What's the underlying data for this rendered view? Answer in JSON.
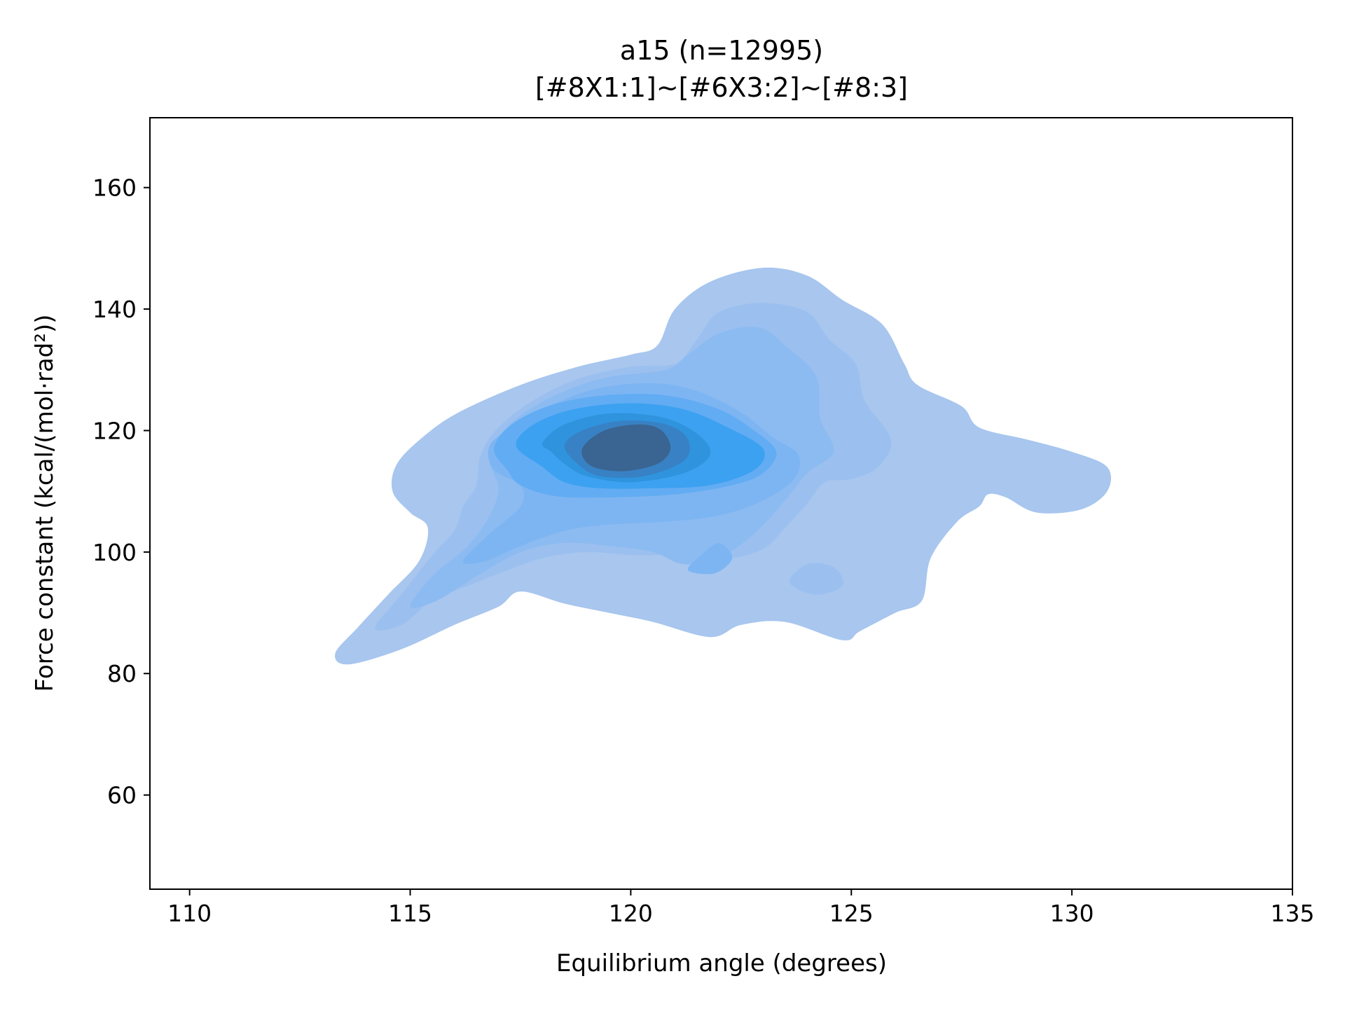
{
  "chart_data": {
    "type": "kde-contour",
    "title": "a15 (n=12995)",
    "subtitle": "[#8X1:1]~[#6X3:2]~[#8:3]",
    "xlabel": "Equilibrium angle (degrees)",
    "ylabel": "Force constant (kcal/(mol·rad²))",
    "xlim": [
      109.1,
      135.0
    ],
    "ylim": [
      44.5,
      171.5
    ],
    "xticks": [
      "110",
      "115",
      "120",
      "125",
      "130",
      "135"
    ],
    "yticks": [
      "60",
      "80",
      "100",
      "120",
      "140",
      "160"
    ],
    "grid": false,
    "legend": "none",
    "n_samples": 12995,
    "mode": {
      "x": 119.9,
      "y": 117.0
    },
    "colors": {
      "levels": [
        "#a8c6ee",
        "#9bc0ef",
        "#8cbbf1",
        "#7db5f2",
        "#62acf3",
        "#3ca1f0",
        "#2f93dd",
        "#3881c4",
        "#3a6491"
      ]
    },
    "levels": [
      {
        "level": 1,
        "polygons": [
          [
            [
              113.3,
              83.3
            ],
            [
              113.8,
              87.5
            ],
            [
              114.5,
              93.0
            ],
            [
              115.2,
              98.5
            ],
            [
              115.4,
              104.0
            ],
            [
              115.0,
              106.5
            ],
            [
              114.6,
              110.0
            ],
            [
              114.7,
              114.5
            ],
            [
              115.3,
              119.0
            ],
            [
              116.1,
              123.0
            ],
            [
              117.5,
              127.5
            ],
            [
              118.8,
              130.5
            ],
            [
              120.0,
              132.5
            ],
            [
              120.6,
              134.0
            ],
            [
              121.0,
              140.0
            ],
            [
              121.8,
              144.5
            ],
            [
              123.0,
              146.8
            ],
            [
              124.0,
              145.5
            ],
            [
              124.8,
              141.5
            ],
            [
              125.7,
              137.5
            ],
            [
              126.2,
              131.0
            ],
            [
              126.5,
              127.5
            ],
            [
              127.5,
              124.0
            ],
            [
              127.9,
              120.5
            ],
            [
              129.0,
              118.5
            ],
            [
              130.0,
              116.5
            ],
            [
              130.8,
              114.0
            ],
            [
              130.8,
              110.0
            ],
            [
              130.2,
              107.0
            ],
            [
              129.2,
              106.5
            ],
            [
              128.5,
              109.0
            ],
            [
              128.1,
              109.5
            ],
            [
              127.9,
              107.5
            ],
            [
              127.4,
              105.0
            ],
            [
              126.8,
              99.0
            ],
            [
              126.6,
              92.0
            ],
            [
              126.0,
              90.0
            ],
            [
              125.2,
              87.0
            ],
            [
              124.8,
              85.5
            ],
            [
              123.5,
              88.5
            ],
            [
              122.5,
              88.0
            ],
            [
              121.8,
              86.0
            ],
            [
              120.5,
              88.5
            ],
            [
              119.5,
              90.0
            ],
            [
              118.5,
              91.5
            ],
            [
              117.5,
              93.5
            ],
            [
              117.0,
              91.0
            ],
            [
              116.0,
              88.0
            ],
            [
              114.8,
              84.0
            ],
            [
              113.6,
              81.5
            ]
          ]
        ]
      },
      {
        "level": 2,
        "polygons": [
          [
            [
              114.2,
              87.5
            ],
            [
              114.8,
              93.0
            ],
            [
              115.5,
              99.5
            ],
            [
              116.0,
              103.5
            ],
            [
              116.2,
              107.5
            ],
            [
              116.5,
              111.0
            ],
            [
              116.6,
              116.0
            ],
            [
              117.0,
              120.5
            ],
            [
              117.8,
              125.0
            ],
            [
              118.8,
              128.5
            ],
            [
              120.0,
              130.5
            ],
            [
              121.0,
              131.0
            ],
            [
              121.5,
              135.0
            ],
            [
              122.0,
              139.5
            ],
            [
              123.0,
              141.0
            ],
            [
              124.0,
              139.5
            ],
            [
              124.5,
              135.0
            ],
            [
              125.1,
              131.0
            ],
            [
              125.3,
              125.0
            ],
            [
              125.9,
              118.5
            ],
            [
              125.6,
              114.0
            ],
            [
              125.0,
              112.0
            ],
            [
              124.4,
              111.5
            ],
            [
              124.0,
              108.0
            ],
            [
              123.5,
              104.0
            ],
            [
              123.0,
              100.5
            ],
            [
              122.2,
              99.0
            ],
            [
              121.0,
              99.5
            ],
            [
              120.0,
              99.5
            ],
            [
              119.0,
              100.0
            ],
            [
              118.0,
              99.0
            ],
            [
              117.2,
              97.0
            ],
            [
              116.5,
              95.0
            ],
            [
              115.5,
              92.0
            ],
            [
              114.8,
              88.0
            ]
          ],
          [
            [
              123.6,
              95.0
            ],
            [
              124.0,
              98.0
            ],
            [
              124.6,
              97.5
            ],
            [
              124.8,
              94.5
            ],
            [
              124.2,
              93.0
            ]
          ]
        ]
      },
      {
        "level": 3,
        "polygons": [
          [
            [
              115.0,
              91.0
            ],
            [
              115.5,
              96.0
            ],
            [
              116.3,
              101.0
            ],
            [
              116.8,
              106.0
            ],
            [
              117.0,
              110.5
            ],
            [
              116.8,
              115.0
            ],
            [
              117.0,
              119.0
            ],
            [
              117.6,
              123.0
            ],
            [
              118.5,
              126.5
            ],
            [
              119.5,
              128.8
            ],
            [
              120.8,
              130.0
            ],
            [
              121.3,
              132.5
            ],
            [
              122.0,
              136.0
            ],
            [
              122.9,
              137.0
            ],
            [
              123.5,
              134.0
            ],
            [
              124.2,
              129.0
            ],
            [
              124.3,
              122.0
            ],
            [
              124.6,
              116.5
            ],
            [
              124.0,
              113.0
            ],
            [
              123.5,
              108.5
            ],
            [
              122.8,
              103.0
            ],
            [
              122.0,
              99.0
            ],
            [
              121.2,
              98.0
            ],
            [
              120.5,
              100.0
            ],
            [
              119.5,
              101.0
            ],
            [
              118.5,
              101.5
            ],
            [
              117.5,
              100.0
            ],
            [
              116.5,
              96.0
            ],
            [
              115.6,
              92.0
            ]
          ]
        ]
      },
      {
        "level": 4,
        "polygons": [
          [
            [
              116.2,
              98.5
            ],
            [
              116.8,
              103.0
            ],
            [
              117.5,
              107.5
            ],
            [
              117.5,
              111.0
            ],
            [
              116.9,
              113.5
            ],
            [
              116.8,
              117.5
            ],
            [
              117.4,
              121.0
            ],
            [
              118.3,
              124.5
            ],
            [
              119.3,
              127.0
            ],
            [
              120.5,
              127.8
            ],
            [
              121.5,
              126.5
            ],
            [
              122.5,
              123.0
            ],
            [
              123.2,
              119.0
            ],
            [
              123.8,
              116.0
            ],
            [
              123.7,
              112.0
            ],
            [
              123.0,
              108.5
            ],
            [
              122.0,
              106.0
            ],
            [
              120.8,
              105.0
            ],
            [
              119.5,
              104.5
            ],
            [
              118.5,
              103.5
            ],
            [
              117.5,
              101.0
            ],
            [
              116.7,
              98.5
            ]
          ],
          [
            [
              121.3,
              97.0
            ],
            [
              121.6,
              99.5
            ],
            [
              122.0,
              101.5
            ],
            [
              122.3,
              99.0
            ],
            [
              121.9,
              96.5
            ]
          ]
        ]
      },
      {
        "level": 5,
        "polygons": [
          [
            [
              116.9,
              117.0
            ],
            [
              117.3,
              121.0
            ],
            [
              118.2,
              124.2
            ],
            [
              119.4,
              125.8
            ],
            [
              120.8,
              125.8
            ],
            [
              122.0,
              123.5
            ],
            [
              122.8,
              120.0
            ],
            [
              123.3,
              116.5
            ],
            [
              123.0,
              113.0
            ],
            [
              122.3,
              111.0
            ],
            [
              121.0,
              109.5
            ],
            [
              119.5,
              109.0
            ],
            [
              118.3,
              109.2
            ],
            [
              117.5,
              111.0
            ],
            [
              117.2,
              113.5
            ]
          ]
        ]
      },
      {
        "level": 6,
        "polygons": [
          [
            [
              117.4,
              117.5
            ],
            [
              117.8,
              121.0
            ],
            [
              118.7,
              123.5
            ],
            [
              120.0,
              124.5
            ],
            [
              121.2,
              123.5
            ],
            [
              122.2,
              120.5
            ],
            [
              123.0,
              117.0
            ],
            [
              122.8,
              113.5
            ],
            [
              121.8,
              111.0
            ],
            [
              120.5,
              110.5
            ],
            [
              119.3,
              110.5
            ],
            [
              118.5,
              111.5
            ],
            [
              118.0,
              114.0
            ]
          ]
        ]
      },
      {
        "level": 7,
        "polygons": [
          [
            [
              118.0,
              118.0
            ],
            [
              118.5,
              121.0
            ],
            [
              119.5,
              122.8
            ],
            [
              120.7,
              122.2
            ],
            [
              121.5,
              119.5
            ],
            [
              121.8,
              116.0
            ],
            [
              121.2,
              113.0
            ],
            [
              120.0,
              111.5
            ],
            [
              119.0,
              112.5
            ],
            [
              118.5,
              114.5
            ],
            [
              118.2,
              116.5
            ]
          ]
        ]
      },
      {
        "level": 8,
        "polygons": [
          [
            [
              118.5,
              117.5
            ],
            [
              118.9,
              120.0
            ],
            [
              119.8,
              121.6
            ],
            [
              120.8,
              121.0
            ],
            [
              121.3,
              118.5
            ],
            [
              121.2,
              115.0
            ],
            [
              120.3,
              112.5
            ],
            [
              119.3,
              112.5
            ],
            [
              118.8,
              114.5
            ]
          ]
        ]
      },
      {
        "level": 9,
        "polygons": [
          [
            [
              118.9,
              117.0
            ],
            [
              119.4,
              120.0
            ],
            [
              120.2,
              121.0
            ],
            [
              120.7,
              120.0
            ],
            [
              120.9,
              117.0
            ],
            [
              120.6,
              114.5
            ],
            [
              119.8,
              113.3
            ],
            [
              119.1,
              114.2
            ]
          ]
        ]
      }
    ]
  }
}
